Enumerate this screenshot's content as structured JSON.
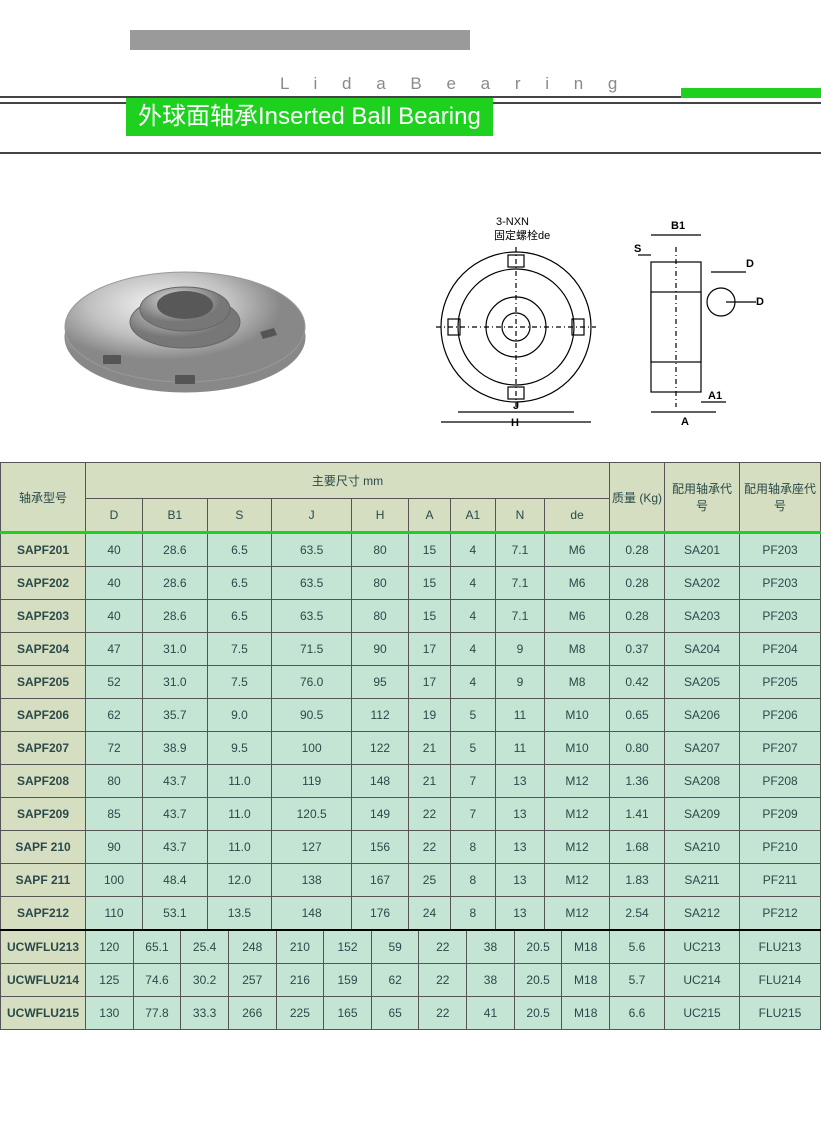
{
  "header": {
    "brand": "L i d a   B e a r i n g",
    "title": "外球面轴承Inserted Ball Bearing"
  },
  "diagram": {
    "top_label": "3-NXN 固定螺栓de",
    "labels": [
      "B1",
      "S",
      "D",
      "D",
      "A1",
      "A",
      "J",
      "H"
    ]
  },
  "table1": {
    "header_group": "主要尺寸 mm",
    "col_model": "轴承型号",
    "cols": [
      "D",
      "B1",
      "S",
      "J",
      "H",
      "A",
      "A1",
      "N",
      "de"
    ],
    "col_weight": "质量 (Kg)",
    "col_bearing": "配用轴承代号",
    "col_housing": "配用轴承座代号",
    "rows": [
      {
        "m": "SAPF201",
        "d": [
          "40",
          "28.6",
          "6.5",
          "63.5",
          "80",
          "15",
          "4",
          "7.1",
          "M6"
        ],
        "w": "0.28",
        "b": "SA201",
        "h": "PF203"
      },
      {
        "m": "SAPF202",
        "d": [
          "40",
          "28.6",
          "6.5",
          "63.5",
          "80",
          "15",
          "4",
          "7.1",
          "M6"
        ],
        "w": "0.28",
        "b": "SA202",
        "h": "PF203"
      },
      {
        "m": "SAPF203",
        "d": [
          "40",
          "28.6",
          "6.5",
          "63.5",
          "80",
          "15",
          "4",
          "7.1",
          "M6"
        ],
        "w": "0.28",
        "b": "SA203",
        "h": "PF203"
      },
      {
        "m": "SAPF204",
        "d": [
          "47",
          "31.0",
          "7.5",
          "71.5",
          "90",
          "17",
          "4",
          "9",
          "M8"
        ],
        "w": "0.37",
        "b": "SA204",
        "h": "PF204"
      },
      {
        "m": "SAPF205",
        "d": [
          "52",
          "31.0",
          "7.5",
          "76.0",
          "95",
          "17",
          "4",
          "9",
          "M8"
        ],
        "w": "0.42",
        "b": "SA205",
        "h": "PF205"
      },
      {
        "m": "SAPF206",
        "d": [
          "62",
          "35.7",
          "9.0",
          "90.5",
          "112",
          "19",
          "5",
          "11",
          "M10"
        ],
        "w": "0.65",
        "b": "SA206",
        "h": "PF206"
      },
      {
        "m": "SAPF207",
        "d": [
          "72",
          "38.9",
          "9.5",
          "100",
          "122",
          "21",
          "5",
          "11",
          "M10"
        ],
        "w": "0.80",
        "b": "SA207",
        "h": "PF207"
      },
      {
        "m": "SAPF208",
        "d": [
          "80",
          "43.7",
          "11.0",
          "119",
          "148",
          "21",
          "7",
          "13",
          "M12"
        ],
        "w": "1.36",
        "b": "SA208",
        "h": "PF208"
      },
      {
        "m": "SAPF209",
        "d": [
          "85",
          "43.7",
          "11.0",
          "120.5",
          "149",
          "22",
          "7",
          "13",
          "M12"
        ],
        "w": "1.41",
        "b": "SA209",
        "h": "PF209"
      },
      {
        "m": "SAPF 210",
        "d": [
          "90",
          "43.7",
          "11.0",
          "127",
          "156",
          "22",
          "8",
          "13",
          "M12"
        ],
        "w": "1.68",
        "b": "SA210",
        "h": "PF210"
      },
      {
        "m": "SAPF 211",
        "d": [
          "100",
          "48.4",
          "12.0",
          "138",
          "167",
          "25",
          "8",
          "13",
          "M12"
        ],
        "w": "1.83",
        "b": "SA211",
        "h": "PF211"
      },
      {
        "m": "SAPF212",
        "d": [
          "110",
          "53.1",
          "13.5",
          "148",
          "176",
          "24",
          "8",
          "13",
          "M12"
        ],
        "w": "2.54",
        "b": "SA212",
        "h": "PF212"
      }
    ]
  },
  "table2": {
    "rows": [
      {
        "m": "UCWFLU213",
        "d": [
          "120",
          "65.1",
          "25.4",
          "248",
          "210",
          "152",
          "59",
          "22",
          "38",
          "20.5",
          "M18"
        ],
        "w": "5.6",
        "b": "UC213",
        "h": "FLU213"
      },
      {
        "m": "UCWFLU214",
        "d": [
          "125",
          "74.6",
          "30.2",
          "257",
          "216",
          "159",
          "62",
          "22",
          "38",
          "20.5",
          "M18"
        ],
        "w": "5.7",
        "b": "UC214",
        "h": "FLU214"
      },
      {
        "m": "UCWFLU215",
        "d": [
          "130",
          "77.8",
          "33.3",
          "266",
          "225",
          "165",
          "65",
          "22",
          "41",
          "20.5",
          "M18"
        ],
        "w": "6.6",
        "b": "UC215",
        "h": "FLU215"
      }
    ]
  },
  "colors": {
    "green": "#1ed11e",
    "header_bg": "#d5dec0",
    "cell_bg": "#c4e4d4"
  }
}
